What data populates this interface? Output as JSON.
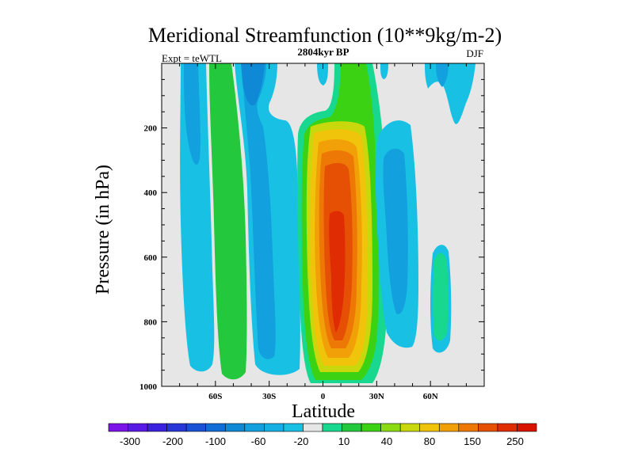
{
  "chart_data": {
    "type": "heatmap",
    "title": "Meridional Streamfunction (10**9kg/m-2)",
    "subtitle": "2804kyr BP",
    "left_label": "Expt = teWTL",
    "right_label": "DJF",
    "xlabel": "Latitude",
    "ylabel": "Pressure (in hPa)",
    "xlim": [
      -90,
      90
    ],
    "ylim": [
      1000,
      0
    ],
    "x_ticks": [
      {
        "value": -60,
        "label": "60S"
      },
      {
        "value": -30,
        "label": "30S"
      },
      {
        "value": 0,
        "label": "0"
      },
      {
        "value": 30,
        "label": "30N"
      },
      {
        "value": 60,
        "label": "60N"
      }
    ],
    "y_ticks": [
      {
        "value": 200,
        "label": "200"
      },
      {
        "value": 400,
        "label": "400"
      },
      {
        "value": 600,
        "label": "600"
      },
      {
        "value": 800,
        "label": "800"
      },
      {
        "value": 1000,
        "label": "1000"
      }
    ],
    "background_color": "#e6e6e6",
    "colorbar": {
      "colors": [
        "#7a14e8",
        "#5a1ae6",
        "#3b22e0",
        "#2838d8",
        "#1a52d6",
        "#126ed6",
        "#0f88d6",
        "#12a0de",
        "#14b0e4",
        "#18c0e4",
        "#e6e6e6",
        "#18d890",
        "#24c83c",
        "#3cd214",
        "#8adc10",
        "#c8d80c",
        "#f0c40a",
        "#f2a008",
        "#ee7806",
        "#e65004",
        "#e02c02",
        "#d81400"
      ],
      "labels": [
        "-300",
        "-200",
        "-100",
        "-60",
        "-20",
        "10",
        "40",
        "80",
        "150",
        "250"
      ]
    },
    "cells": [
      {
        "lat": -80,
        "p": 100,
        "level": 9
      },
      {
        "lat": -80,
        "p": 500,
        "level": 9
      },
      {
        "lat": -55,
        "p": 500,
        "level": 12
      },
      {
        "lat": -35,
        "p": 500,
        "level": 8
      },
      {
        "lat": -5,
        "p": 100,
        "level": 11
      },
      {
        "lat": 5,
        "p": 500,
        "level": 21
      },
      {
        "lat": 5,
        "p": 900,
        "level": 17
      },
      {
        "lat": 35,
        "p": 500,
        "level": 8
      },
      {
        "lat": 65,
        "p": 750,
        "level": 11
      },
      {
        "lat": 75,
        "p": 80,
        "level": 9
      }
    ]
  }
}
